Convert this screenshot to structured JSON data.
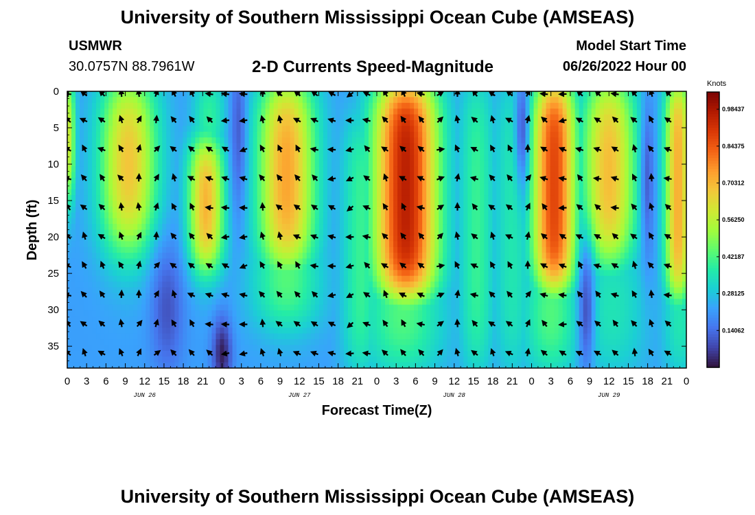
{
  "header": {
    "title": "University of Southern Mississippi Ocean Cube (AMSEAS)",
    "station": "USMWR",
    "coords": "30.0757N  88.7961W",
    "subtitle": "2-D Currents Speed-Magnitude",
    "model_start_label": "Model Start Time",
    "model_start_value": "06/26/2022 Hour 00"
  },
  "footer": {
    "title": "University of Southern Mississippi Ocean Cube (AMSEAS)"
  },
  "chart_data": {
    "type": "heatmap",
    "title": "2-D Currents Speed-Magnitude",
    "xlabel": "Forecast Time(Z)",
    "ylabel": "Depth (ft)",
    "units": "Knots",
    "x_range_hours": [
      0,
      96
    ],
    "x_tick_hours": [
      0,
      3,
      6,
      9,
      12,
      15,
      18,
      21,
      24,
      27,
      30,
      33,
      36,
      39,
      42,
      45,
      48,
      51,
      54,
      57,
      60,
      63,
      66,
      69,
      72,
      75,
      78,
      81,
      84,
      87,
      90,
      93,
      96
    ],
    "x_tick_labels": [
      "0",
      "3",
      "6",
      "9",
      "12",
      "15",
      "18",
      "21",
      "0",
      "3",
      "6",
      "9",
      "12",
      "15",
      "18",
      "21",
      "0",
      "3",
      "6",
      "9",
      "12",
      "15",
      "18",
      "21",
      "0",
      "3",
      "6",
      "9",
      "12",
      "15",
      "18",
      "21",
      "0"
    ],
    "date_labels": [
      {
        "label": "JUN 26",
        "hour": 12
      },
      {
        "label": "JUN 27",
        "hour": 36
      },
      {
        "label": "JUN 28",
        "hour": 60
      },
      {
        "label": "JUN 29",
        "hour": 84
      }
    ],
    "y_range_ft": [
      0,
      38
    ],
    "y_ticks": [
      0,
      5,
      10,
      15,
      20,
      25,
      30,
      35
    ],
    "colorbar": {
      "min": 0.0,
      "max": 1.05,
      "tick_values": [
        0.140625,
        0.28125,
        0.421875,
        0.5625,
        0.703125,
        0.84375,
        0.984375
      ],
      "tick_labels": [
        "0.14062",
        "0.28125",
        "0.42187",
        "0.56250",
        "0.70312",
        "0.84375",
        "0.98437"
      ],
      "colors": [
        "#30123b",
        "#4145ab",
        "#4675ed",
        "#39a2fc",
        "#1bcfd4",
        "#24eca6",
        "#61fc6c",
        "#a4fc3b",
        "#d1e834",
        "#f3c63a",
        "#fe9b2d",
        "#f36315",
        "#d93806",
        "#b11901",
        "#7a0403"
      ]
    },
    "speed_peaks": [
      {
        "hour": 0.2,
        "speed": 0.62,
        "width": 1.1,
        "depth_min": 0,
        "depth_max": 14,
        "roll": 5
      },
      {
        "hour": 9.5,
        "speed": 0.7,
        "width": 4.5,
        "depth_min": 0,
        "depth_max": 21,
        "roll": 6
      },
      {
        "hour": 21.5,
        "speed": 0.72,
        "width": 2.8,
        "depth_min": 8,
        "depth_max": 24,
        "roll": 4
      },
      {
        "hour": 22.0,
        "speed": 0.45,
        "width": 2.6,
        "depth_min": 0,
        "depth_max": 8,
        "roll": 5
      },
      {
        "hour": 34.0,
        "speed": 0.74,
        "width": 4.5,
        "depth_min": 0,
        "depth_max": 24,
        "roll": 5
      },
      {
        "hour": 34.0,
        "speed": 0.45,
        "width": 5.5,
        "depth_min": 20,
        "depth_max": 32,
        "roll": 4
      },
      {
        "hour": 45.5,
        "speed": 0.4,
        "width": 3.0,
        "depth_min": 5,
        "depth_max": 38,
        "roll": 5
      },
      {
        "hour": 52.5,
        "speed": 0.96,
        "width": 5.0,
        "depth_min": 0,
        "depth_max": 28,
        "roll": 4
      },
      {
        "hour": 52.0,
        "speed": 0.45,
        "width": 6.5,
        "depth_min": 24,
        "depth_max": 38,
        "roll": 5
      },
      {
        "hour": 63.5,
        "speed": 0.4,
        "width": 2.8,
        "depth_min": 0,
        "depth_max": 38,
        "roll": 6
      },
      {
        "hour": 69.0,
        "speed": 0.36,
        "width": 3.0,
        "depth_min": 0,
        "depth_max": 38,
        "roll": 6
      },
      {
        "hour": 75.5,
        "speed": 0.88,
        "width": 3.4,
        "depth_min": 0,
        "depth_max": 27,
        "roll": 4
      },
      {
        "hour": 75.0,
        "speed": 0.45,
        "width": 4.5,
        "depth_min": 24,
        "depth_max": 38,
        "roll": 5
      },
      {
        "hour": 84.0,
        "speed": 0.7,
        "width": 4.2,
        "depth_min": 0,
        "depth_max": 23,
        "roll": 5
      },
      {
        "hour": 84.5,
        "speed": 0.36,
        "width": 5.5,
        "depth_min": 22,
        "depth_max": 38,
        "roll": 5
      },
      {
        "hour": 94.7,
        "speed": 0.72,
        "width": 2.1,
        "depth_min": 0,
        "depth_max": 28,
        "roll": 4
      },
      {
        "hour": 95.0,
        "speed": 0.38,
        "width": 2.8,
        "depth_min": 26,
        "depth_max": 38,
        "roll": 5
      }
    ],
    "speed_lows": [
      {
        "hour": 24.0,
        "depth": 36,
        "speed": 0.02,
        "width": 1.5,
        "depth_width": 5
      },
      {
        "hour": 15.5,
        "depth": 30,
        "speed": 0.1,
        "width": 2.5,
        "depth_width": 9
      },
      {
        "hour": 26.5,
        "depth": 5,
        "speed": 0.12,
        "width": 1.2,
        "depth_width": 12
      },
      {
        "hour": 70.5,
        "depth": 5,
        "speed": 0.12,
        "width": 1.0,
        "depth_width": 8
      },
      {
        "hour": 80.5,
        "depth": 30,
        "speed": 0.1,
        "width": 1.2,
        "depth_width": 9
      },
      {
        "hour": 90.0,
        "depth": 12,
        "speed": 0.12,
        "width": 1.0,
        "depth_width": 12
      }
    ],
    "background_speed": 0.22,
    "vector_hours": [
      0.2,
      2.7,
      5.5,
      8.4,
      11.1,
      13.8,
      16.6,
      19.4,
      22.2,
      24.7,
      27.5,
      30.3,
      33.0,
      35.8,
      38.5,
      41.2,
      44.0,
      46.6,
      49.4,
      52.2,
      55.0,
      57.7,
      60.5,
      63.3,
      66.0,
      68.7,
      71.4,
      74.1,
      77.0,
      79.6,
      82.4,
      85.1,
      88.0,
      90.6,
      93.3
    ],
    "vector_depths": [
      0,
      4,
      8,
      12,
      16,
      20,
      24,
      28,
      32,
      36
    ],
    "vector_direction_columns_deg": [
      300,
      320,
      315,
      340,
      15,
      30,
      330,
      320,
      300,
      285,
      270,
      340,
      330,
      315,
      300,
      280,
      250,
      300,
      320,
      315,
      300,
      60,
      350,
      300,
      320,
      310,
      15,
      300,
      280,
      310,
      300,
      300,
      330,
      340,
      300
    ]
  }
}
